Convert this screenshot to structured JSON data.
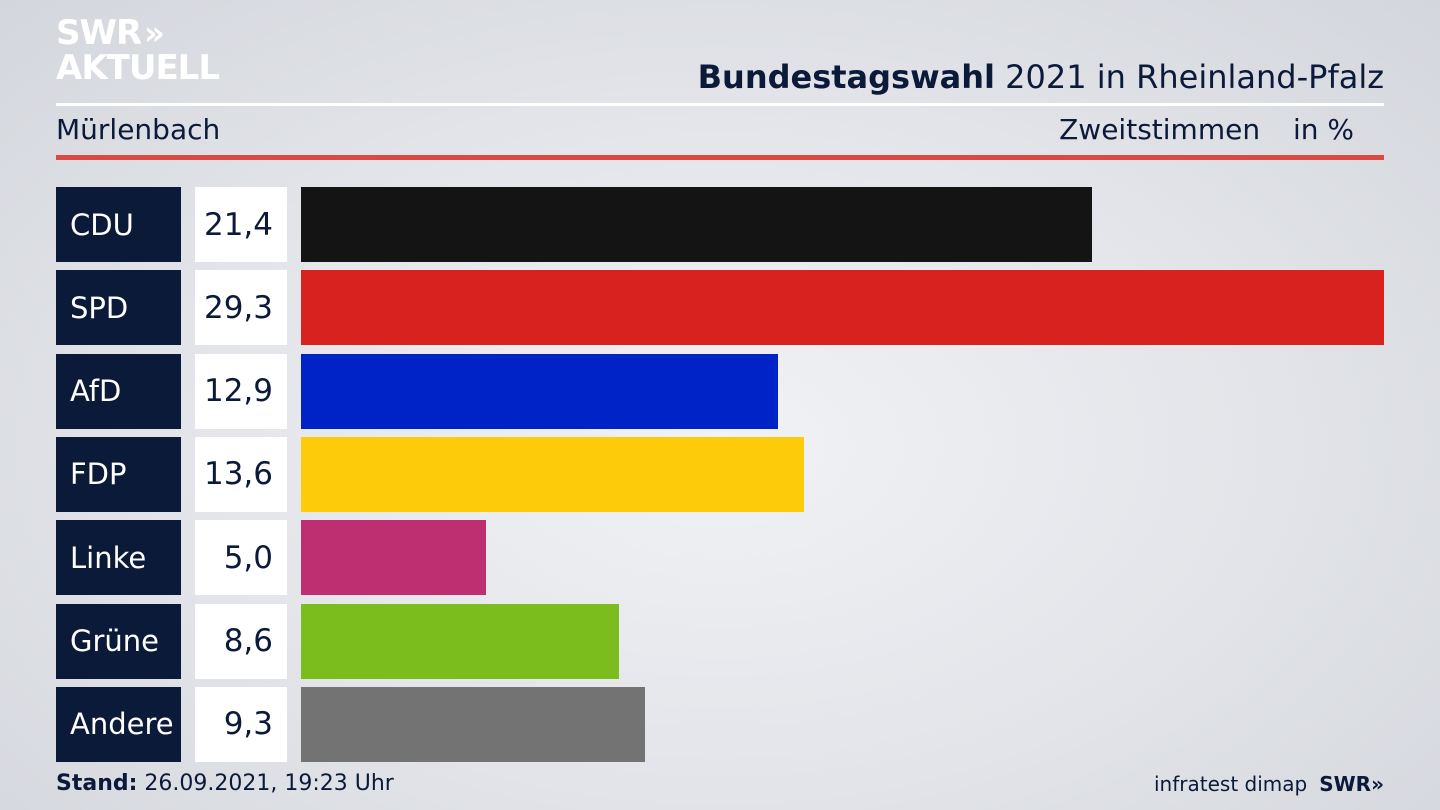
{
  "logo": {
    "line1": "SWR",
    "chevrons": "»",
    "line2": "AKTUELL"
  },
  "header": {
    "title_bold": "Bundestagswahl",
    "title_rest": "2021 in Rheinland-Pfalz",
    "place": "Mürlenbach",
    "vote_type": "Zweitstimmen",
    "unit": "in %"
  },
  "chart_data": {
    "type": "bar",
    "orientation": "horizontal",
    "categories": [
      "CDU",
      "SPD",
      "AfD",
      "FDP",
      "Linke",
      "Grüne",
      "Andere"
    ],
    "values": [
      21.4,
      29.3,
      12.9,
      13.6,
      5.0,
      8.6,
      9.3
    ],
    "value_labels": [
      "21,4",
      "29,3",
      "12,9",
      "13,6",
      "5,0",
      "8,6",
      "9,3"
    ],
    "colors": [
      "#141414",
      "#d8221f",
      "#0023c8",
      "#fecb0a",
      "#bd2f71",
      "#7bbd1c",
      "#737373"
    ],
    "xlim": [
      0,
      29.3
    ],
    "grid": false
  },
  "footer": {
    "stand_label": "Stand:",
    "stand_value": "26.09.2021, 19:23 Uhr",
    "source": "infratest dimap",
    "brand": "SWR",
    "brand_chevrons": "»"
  }
}
